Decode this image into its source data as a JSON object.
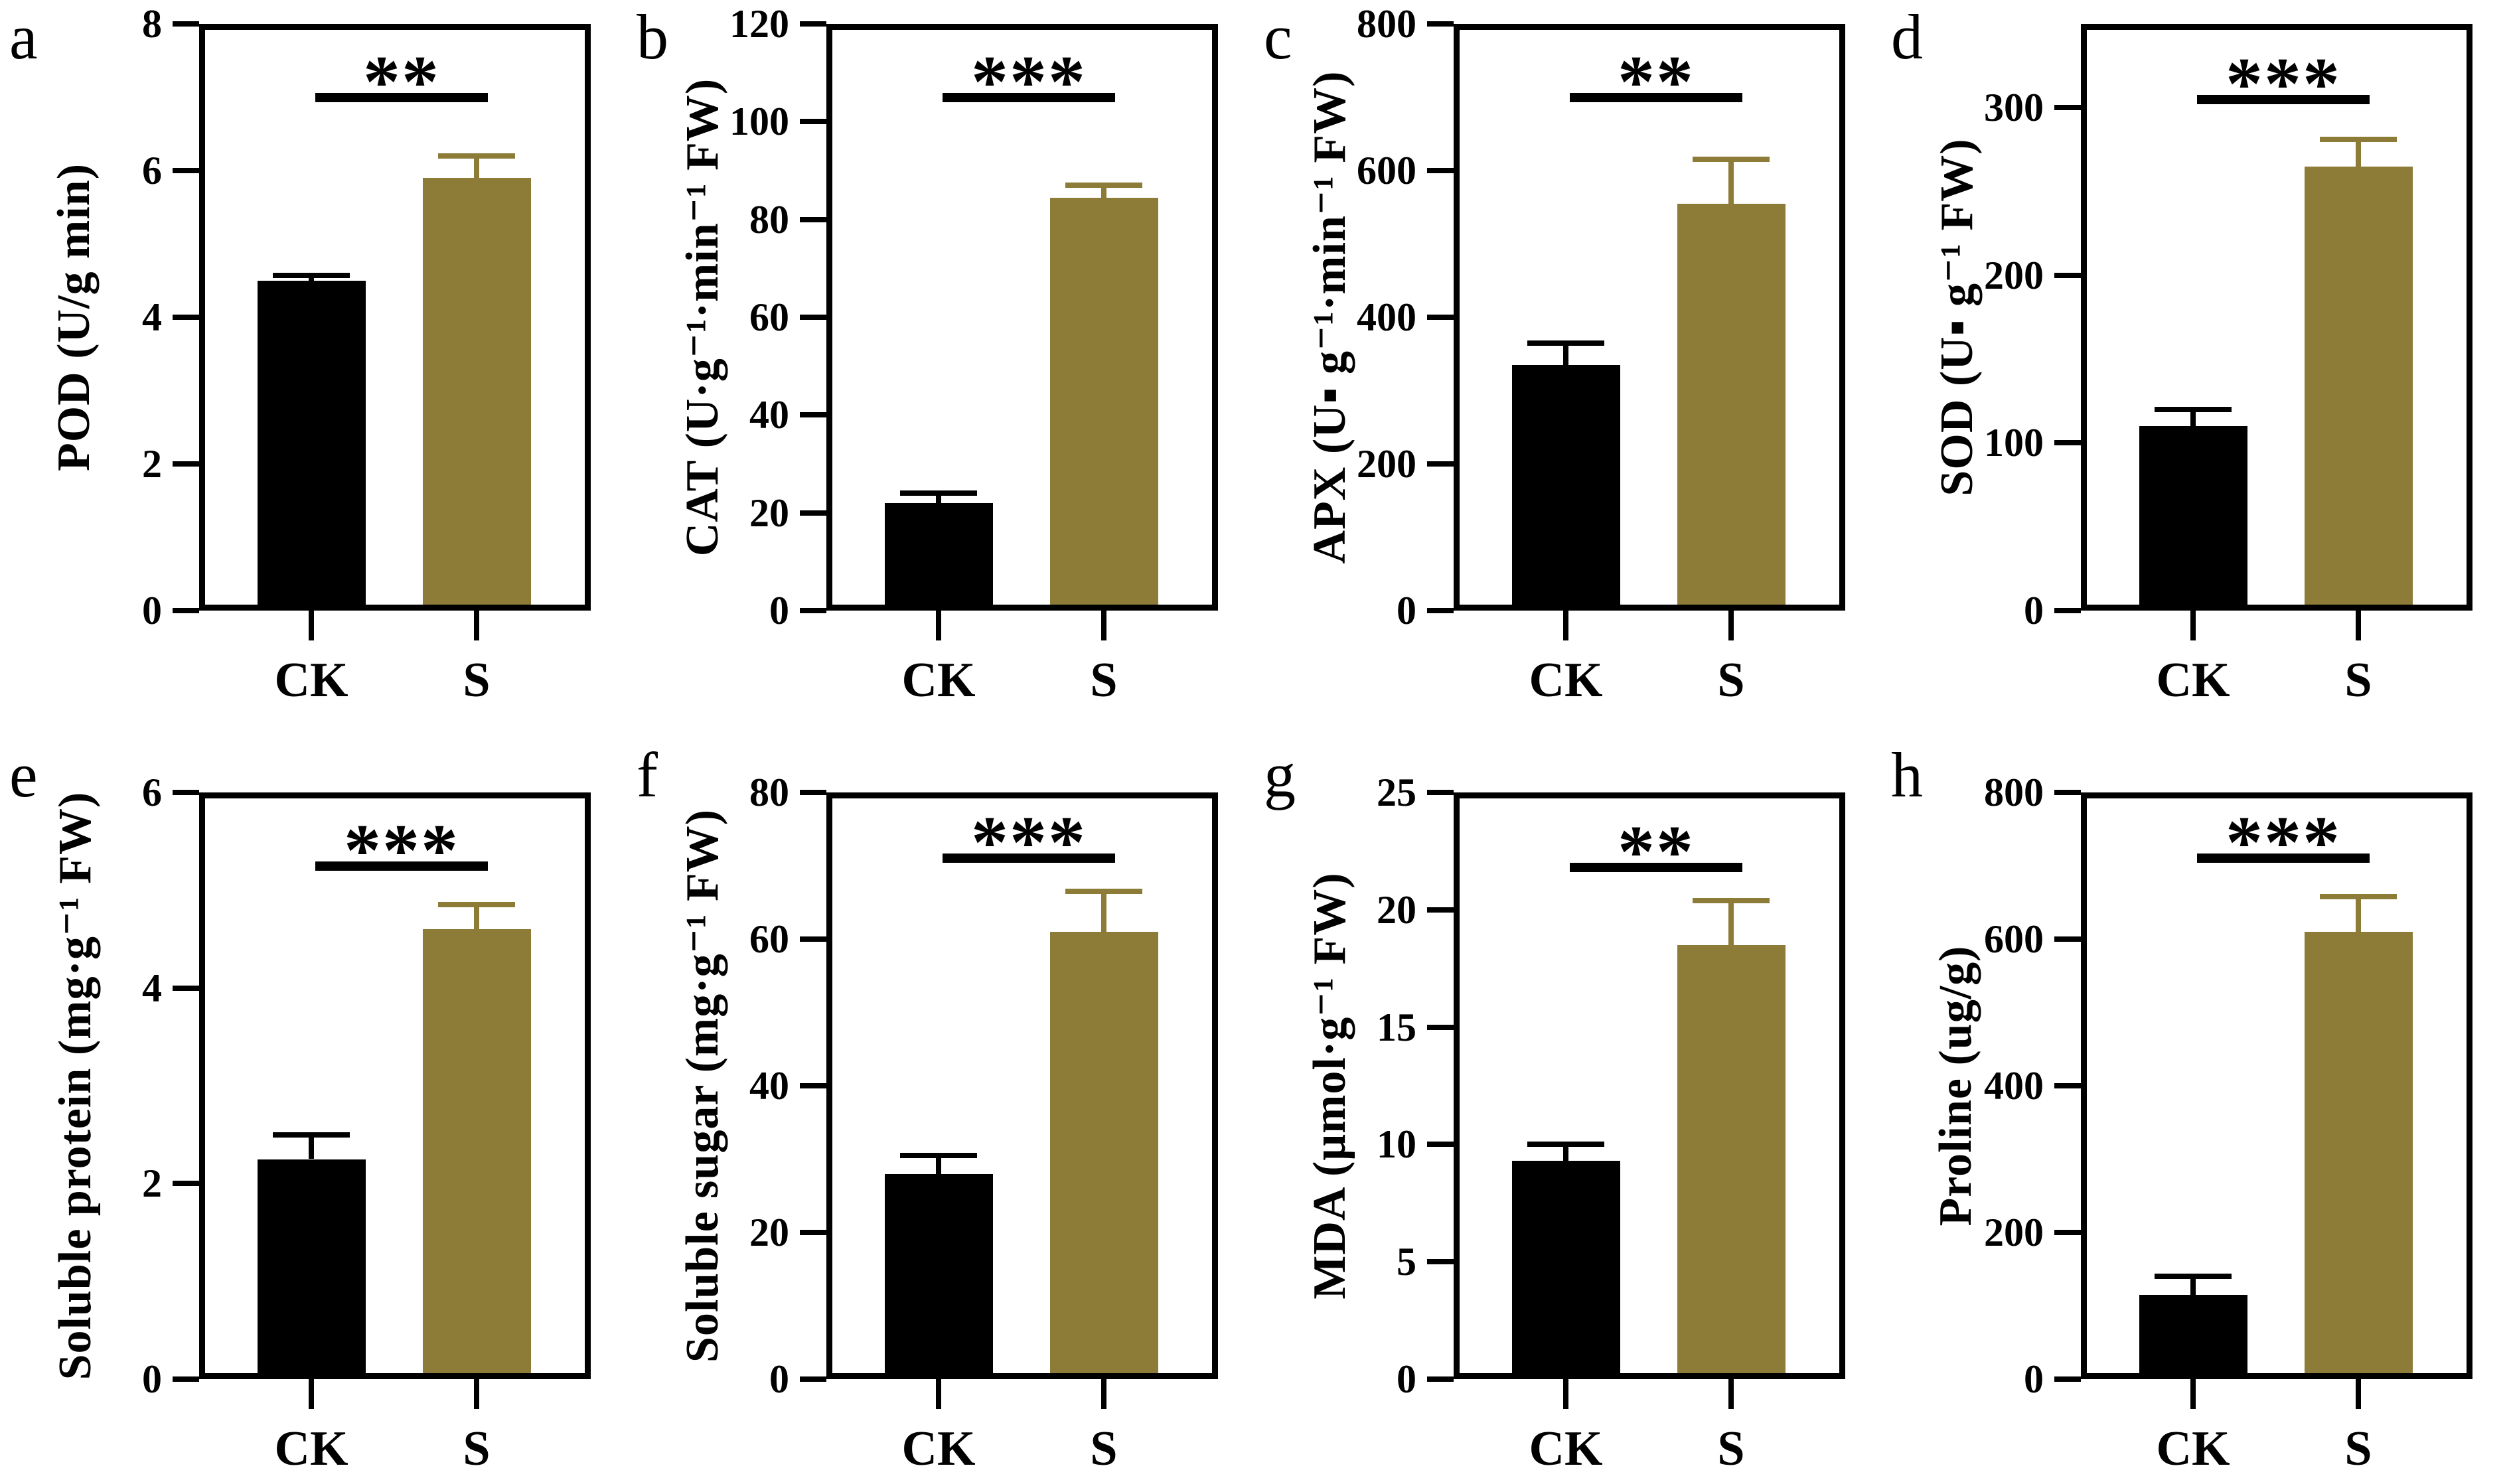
{
  "figure": {
    "description": "Eight-panel bar chart figure comparing control (CK) and salt/stress (S) treatments",
    "categories": [
      "CK",
      "S"
    ],
    "bar_colors": {
      "CK": "#000000",
      "S": "#8D7C37"
    },
    "axis_color": "#000000",
    "background_color": "#ffffff"
  },
  "chart_data": [
    {
      "panel": "a",
      "type": "bar",
      "ylabel": "POD (U/g min)",
      "categories": [
        "CK",
        "S"
      ],
      "values": [
        4.5,
        5.9
      ],
      "errors": [
        0.07,
        0.3
      ],
      "yticks": [
        0,
        2,
        4,
        6,
        8
      ],
      "ylim": [
        0,
        8
      ],
      "significance": "**",
      "sig_line_y": 7.0
    },
    {
      "panel": "b",
      "type": "bar",
      "ylabel": "CAT (U·g⁻¹·min⁻¹ FW)",
      "categories": [
        "CK",
        "S"
      ],
      "values": [
        22,
        84.5
      ],
      "errors": [
        2,
        2.5
      ],
      "yticks": [
        0,
        20,
        40,
        60,
        80,
        100,
        120
      ],
      "ylim": [
        0,
        120
      ],
      "significance": "***",
      "sig_line_y": 105
    },
    {
      "panel": "c",
      "type": "bar",
      "ylabel": "APX (U▪ g⁻¹·min⁻¹ FW)",
      "categories": [
        "CK",
        "S"
      ],
      "values": [
        335,
        555
      ],
      "errors": [
        30,
        60
      ],
      "yticks": [
        0,
        200,
        400,
        600,
        800
      ],
      "ylim": [
        0,
        800
      ],
      "significance": "**",
      "sig_line_y": 700
    },
    {
      "panel": "d",
      "type": "bar",
      "ylabel": "SOD (U▪ g⁻¹ FW)",
      "categories": [
        "CK",
        "S"
      ],
      "values": [
        110,
        265
      ],
      "errors": [
        10,
        16
      ],
      "yticks": [
        0,
        100,
        200,
        300
      ],
      "ylim": [
        0,
        350
      ],
      "significance": "***",
      "sig_line_y": 305
    },
    {
      "panel": "e",
      "type": "bar",
      "ylabel": "Soluble protein (mg·g⁻¹ FW)",
      "categories": [
        "CK",
        "S"
      ],
      "values": [
        2.25,
        4.6
      ],
      "errors": [
        0.25,
        0.25
      ],
      "yticks": [
        0,
        2,
        4,
        6
      ],
      "ylim": [
        0,
        6
      ],
      "significance": "***",
      "sig_line_y": 5.25
    },
    {
      "panel": "f",
      "type": "bar",
      "ylabel": "Soluble sugar (mg·g⁻¹ FW)",
      "categories": [
        "CK",
        "S"
      ],
      "values": [
        28,
        61
      ],
      "errors": [
        2.5,
        5.5
      ],
      "yticks": [
        0,
        20,
        40,
        60,
        80
      ],
      "ylim": [
        0,
        80
      ],
      "significance": "***",
      "sig_line_y": 71
    },
    {
      "panel": "g",
      "type": "bar",
      "ylabel": "MDA (μmol·g⁻¹ FW)",
      "categories": [
        "CK",
        "S"
      ],
      "values": [
        9.3,
        18.5
      ],
      "errors": [
        0.7,
        1.9
      ],
      "yticks": [
        0,
        5,
        10,
        15,
        20,
        25
      ],
      "ylim": [
        0,
        25
      ],
      "significance": "**",
      "sig_line_y": 21.8
    },
    {
      "panel": "h",
      "type": "bar",
      "ylabel": "Proline (ug/g)",
      "categories": [
        "CK",
        "S"
      ],
      "values": [
        115,
        610
      ],
      "errors": [
        25,
        48
      ],
      "yticks": [
        0,
        200,
        400,
        600,
        800
      ],
      "ylim": [
        0,
        800
      ],
      "significance": "***",
      "sig_line_y": 710
    }
  ]
}
